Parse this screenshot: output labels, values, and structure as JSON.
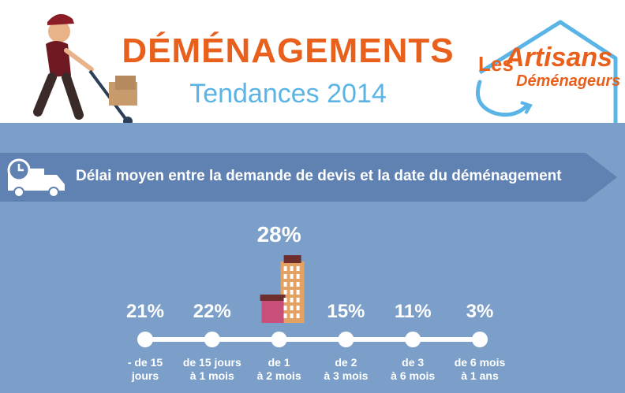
{
  "header": {
    "title": "DÉMÉNAGEMENTS",
    "subtitle": "Tendances 2014",
    "logo": {
      "line1": "Les",
      "line2": "Artisans",
      "line3": "Déménageurs"
    }
  },
  "banner": {
    "text": "Délai moyen entre la demande de devis et la date du déménagement",
    "icon": "truck-clock-icon"
  },
  "colors": {
    "background": "#7b9fc8",
    "banner": "#5f82b3",
    "title": "#e8601c",
    "subtitle": "#5ab4e5",
    "timeline": "#ffffff"
  },
  "chart_data": {
    "type": "bar",
    "categories": [
      "- de 15 jours",
      "de 15 jours à 1 mois",
      "de 1 à 2 mois",
      "de 2 à 3 mois",
      "de 3 à 6 mois",
      "de 6 mois à 1 ans"
    ],
    "category_lines": [
      [
        "- de 15",
        "jours"
      ],
      [
        "de 15 jours",
        "à 1 mois"
      ],
      [
        "de 1",
        "à 2 mois"
      ],
      [
        "de 2",
        "à 3 mois"
      ],
      [
        "de 3",
        "à 6 mois"
      ],
      [
        "de 6 mois",
        "à 1 ans"
      ]
    ],
    "values": [
      21,
      22,
      28,
      15,
      11,
      3
    ],
    "labels": [
      "21%",
      "22%",
      "28%",
      "15%",
      "11%",
      "3%"
    ],
    "title": "Délai moyen entre la demande de devis et la date du déménagement",
    "highlight_index": 2
  }
}
